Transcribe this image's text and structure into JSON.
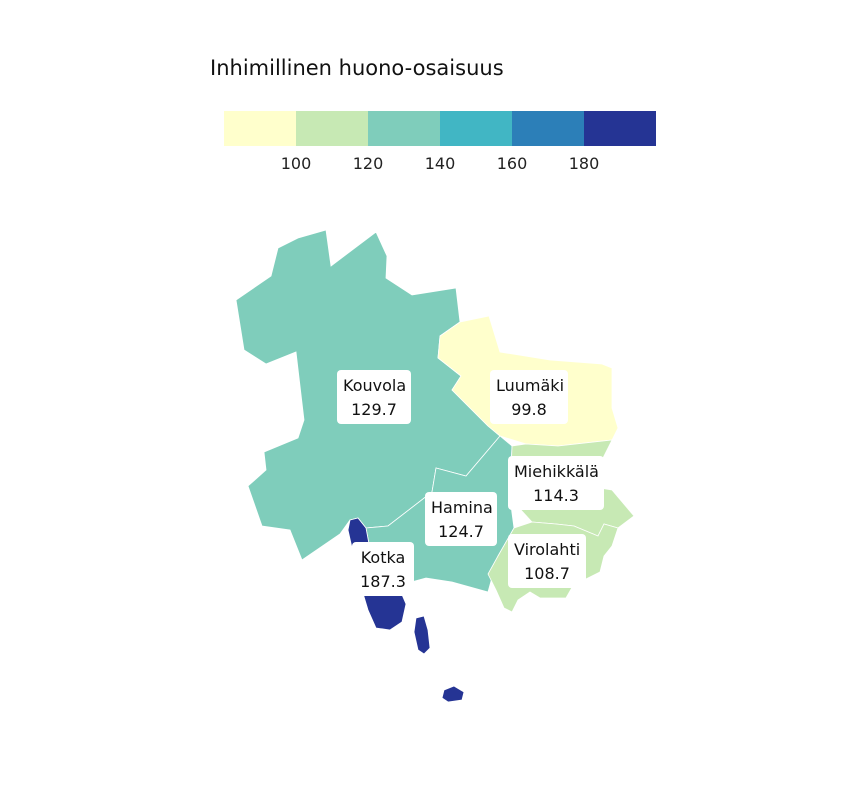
{
  "legend": {
    "title": "Inhimillinen huono-osaisuus",
    "colors": [
      "#ffffcc",
      "#c7e9b4",
      "#7fcdbb",
      "#41b6c4",
      "#2c7fb8",
      "#253494"
    ],
    "ticks": [
      "100",
      "120",
      "140",
      "160",
      "180"
    ]
  },
  "regions": [
    {
      "name": "Kouvola",
      "value": "129.7",
      "color": "#7fcdbb"
    },
    {
      "name": "Luumäki",
      "value": "99.8",
      "color": "#ffffcc"
    },
    {
      "name": "Miehikkälä",
      "value": "114.3",
      "color": "#c7e9b4"
    },
    {
      "name": "Hamina",
      "value": "124.7",
      "color": "#7fcdbb"
    },
    {
      "name": "Virolahti",
      "value": "108.7",
      "color": "#c7e9b4"
    },
    {
      "name": "Kotka",
      "value": "187.3",
      "color": "#253494"
    }
  ]
}
